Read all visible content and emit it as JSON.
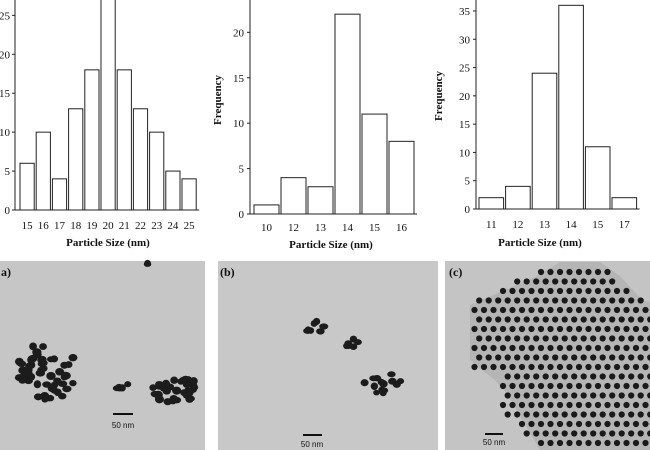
{
  "chart_data": [
    {
      "type": "bar",
      "categories": [
        "15",
        "16",
        "17",
        "18",
        "19",
        "20",
        "21",
        "22",
        "23",
        "24",
        "25"
      ],
      "values": [
        6,
        10,
        4,
        13,
        18,
        28,
        18,
        13,
        10,
        5,
        4
      ],
      "xlabel": "Particle Size (nm)",
      "ylabel": "",
      "ylim": [
        0,
        28
      ],
      "y_ticks": [
        "0",
        "5",
        "10",
        "15",
        "20",
        "25"
      ],
      "grid": false
    },
    {
      "type": "bar",
      "categories": [
        "10",
        "12",
        "13",
        "14",
        "15",
        "16"
      ],
      "values": [
        1,
        4,
        3,
        22,
        11,
        8
      ],
      "xlabel": "Particle Size (nm)",
      "ylabel": "Frequency",
      "ylim": [
        0,
        24
      ],
      "y_ticks": [
        "0",
        "5",
        "10",
        "15",
        "20"
      ],
      "grid": false
    },
    {
      "type": "bar",
      "categories": [
        "11",
        "12",
        "13",
        "14",
        "15",
        "17"
      ],
      "values": [
        2,
        4,
        24,
        36,
        11,
        2
      ],
      "xlabel": "Particle Size (nm)",
      "ylabel": "Frequency",
      "ylim": [
        0,
        38
      ],
      "y_ticks": [
        "0",
        "5",
        "10",
        "15",
        "20",
        "25",
        "30",
        "35"
      ],
      "grid": false
    }
  ],
  "micrographs": [
    {
      "label": "a)",
      "scale_bar": "50 nm"
    },
    {
      "label": "(b)",
      "scale_bar": "50 nm"
    },
    {
      "label": "(c)",
      "scale_bar": "50 nm"
    }
  ]
}
